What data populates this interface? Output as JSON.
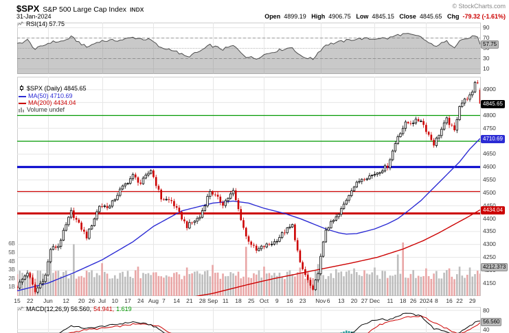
{
  "header": {
    "symbol": "$SPX",
    "name": "S&P 500 Large Cap Index",
    "exchange": "INDX",
    "date": "31-Jan-2024",
    "copyright": "© StockCharts.com",
    "quote": {
      "open_label": "Open",
      "open_value": "4899.19",
      "high_label": "High",
      "high_value": "4906.75",
      "low_label": "Low",
      "low_value": "4845.15",
      "close_label": "Close",
      "close_value": "4845.65",
      "chg_label": "Chg",
      "chg_value": "-79.32 (-1.61%)"
    }
  },
  "rsi_panel": {
    "label": "RSI(14) 57.75",
    "value_box": "57.75"
  },
  "main_panel": {
    "legend_symbol": "$SPX (Daily) 4845.65",
    "legend_ma50": "MA(50) 4710.69",
    "legend_ma200": "MA(200) 4434.04",
    "legend_volume": "Volume undef",
    "price_box": "4845.65",
    "ma50_box": "4710.69",
    "ma200_box": "4434.04",
    "gray_box": "4212.373"
  },
  "macd_panel": {
    "label_macd": "MACD(12,26,9) 56.560,",
    "label_signal": "54.941,",
    "label_hist": "1.619",
    "value_box": "56.560"
  },
  "colors": {
    "up": "#000000",
    "down": "#cc0000",
    "ma50": "#2b2bd4",
    "ma200": "#cc0000",
    "grid": "#e6e6e6",
    "panel_border": "#cccccc",
    "vol_up": "#bdbdbd",
    "vol_down": "#e9a6a6",
    "hist": "#2e9e9e",
    "rsi_line": "#4d4d4d",
    "rsi_fill": "rgba(136,136,136,0.45)"
  },
  "xaxis": {
    "labels": [
      [
        "15",
        0
      ],
      [
        "22",
        5
      ],
      [
        "Jun",
        12
      ],
      [
        "12",
        19
      ],
      [
        "20",
        25
      ],
      [
        "26",
        29
      ],
      [
        "Jul",
        33
      ],
      [
        "10",
        38
      ],
      [
        "17",
        43
      ],
      [
        "24",
        48
      ],
      [
        "Aug",
        53
      ],
      [
        "7",
        57
      ],
      [
        "14",
        62
      ],
      [
        "21",
        67
      ],
      [
        "28",
        72
      ],
      [
        "Sep",
        76
      ],
      [
        "11",
        81
      ],
      [
        "18",
        86
      ],
      [
        "25",
        91
      ],
      [
        "Oct",
        96
      ],
      [
        "9",
        101
      ],
      [
        "16",
        106
      ],
      [
        "23",
        111
      ],
      [
        "Nov",
        118
      ],
      [
        "6",
        121
      ],
      [
        "13",
        126
      ],
      [
        "20",
        131
      ],
      [
        "27",
        135
      ],
      [
        "Dec",
        139
      ],
      [
        "11",
        145
      ],
      [
        "18",
        150
      ],
      [
        "26",
        154
      ],
      [
        "2024",
        159
      ],
      [
        "8",
        163
      ],
      [
        "16",
        168
      ],
      [
        "22",
        172
      ],
      [
        "29",
        177
      ]
    ],
    "month_grid_days": [
      12,
      33,
      53,
      76,
      96,
      118,
      139,
      159
    ]
  },
  "chart_data": [
    {
      "type": "line",
      "name": "RSI(14)",
      "ylim": [
        0,
        100
      ],
      "yticks": [
        90,
        70,
        50,
        30,
        10
      ],
      "overbought": 70,
      "midline": 50,
      "oversold": 30,
      "current": 57.75,
      "anchors": [
        [
          0,
          58
        ],
        [
          4,
          66
        ],
        [
          7,
          48
        ],
        [
          13,
          62
        ],
        [
          18,
          64
        ],
        [
          21,
          72
        ],
        [
          27,
          52
        ],
        [
          32,
          64
        ],
        [
          40,
          66
        ],
        [
          45,
          71
        ],
        [
          52,
          66
        ],
        [
          56,
          50
        ],
        [
          60,
          48
        ],
        [
          66,
          33
        ],
        [
          71,
          44
        ],
        [
          75,
          56
        ],
        [
          80,
          48
        ],
        [
          84,
          55
        ],
        [
          89,
          34
        ],
        [
          93,
          30
        ],
        [
          95,
          36
        ],
        [
          100,
          44
        ],
        [
          104,
          49
        ],
        [
          107,
          52
        ],
        [
          110,
          35
        ],
        [
          115,
          29
        ],
        [
          117,
          42
        ],
        [
          120,
          57
        ],
        [
          125,
          62
        ],
        [
          130,
          67
        ],
        [
          134,
          69
        ],
        [
          138,
          68
        ],
        [
          141,
          70
        ],
        [
          144,
          69
        ],
        [
          148,
          76
        ],
        [
          151,
          78
        ],
        [
          157,
          72
        ],
        [
          159,
          64
        ],
        [
          162,
          54
        ],
        [
          167,
          63
        ],
        [
          170,
          53
        ],
        [
          172,
          66
        ],
        [
          175,
          69
        ],
        [
          178,
          74
        ],
        [
          179,
          72
        ],
        [
          180,
          57.75
        ]
      ]
    },
    {
      "type": "candlestick",
      "name": "$SPX (Daily)",
      "ylim": [
        4100,
        4950
      ],
      "yticks": [
        4900,
        4800,
        4750,
        4700,
        4650,
        4600,
        4550,
        4500,
        4450,
        4400,
        4350,
        4300,
        4250,
        4200,
        4150
      ],
      "grid_step": 50,
      "days": 181,
      "close_anchors": [
        [
          0,
          4136
        ],
        [
          4,
          4192
        ],
        [
          7,
          4115
        ],
        [
          11,
          4180
        ],
        [
          13,
          4282
        ],
        [
          16,
          4294
        ],
        [
          21,
          4426
        ],
        [
          22,
          4410
        ],
        [
          27,
          4329
        ],
        [
          32,
          4450
        ],
        [
          36,
          4446
        ],
        [
          40,
          4510
        ],
        [
          45,
          4566
        ],
        [
          48,
          4536
        ],
        [
          52,
          4589
        ],
        [
          56,
          4478
        ],
        [
          60,
          4468
        ],
        [
          66,
          4370
        ],
        [
          71,
          4406
        ],
        [
          75,
          4508
        ],
        [
          80,
          4457
        ],
        [
          84,
          4505
        ],
        [
          89,
          4330
        ],
        [
          93,
          4274
        ],
        [
          95,
          4288
        ],
        [
          100,
          4309
        ],
        [
          104,
          4350
        ],
        [
          107,
          4373
        ],
        [
          110,
          4224
        ],
        [
          115,
          4117
        ],
        [
          117,
          4194
        ],
        [
          120,
          4358
        ],
        [
          125,
          4415
        ],
        [
          130,
          4514
        ],
        [
          134,
          4556
        ],
        [
          138,
          4568
        ],
        [
          141,
          4585
        ],
        [
          144,
          4604
        ],
        [
          148,
          4720
        ],
        [
          151,
          4768
        ],
        [
          157,
          4783
        ],
        [
          159,
          4743
        ],
        [
          162,
          4689
        ],
        [
          167,
          4784
        ],
        [
          170,
          4739
        ],
        [
          172,
          4840
        ],
        [
          175,
          4869
        ],
        [
          177,
          4891
        ],
        [
          178,
          4928
        ],
        [
          179,
          4925
        ],
        [
          180,
          4845.65
        ]
      ],
      "last_ohlc": {
        "open": 4899.19,
        "high": 4906.75,
        "low": 4845.15,
        "close": 4845.65
      },
      "ma50": [
        [
          0,
          4120
        ],
        [
          12,
          4150
        ],
        [
          22,
          4190
        ],
        [
          33,
          4240
        ],
        [
          45,
          4310
        ],
        [
          53,
          4370
        ],
        [
          64,
          4430
        ],
        [
          76,
          4460
        ],
        [
          84,
          4468
        ],
        [
          90,
          4460
        ],
        [
          96,
          4440
        ],
        [
          104,
          4420
        ],
        [
          110,
          4400
        ],
        [
          115,
          4380
        ],
        [
          120,
          4360
        ],
        [
          125,
          4345
        ],
        [
          128,
          4340
        ],
        [
          132,
          4342
        ],
        [
          136,
          4352
        ],
        [
          139,
          4360
        ],
        [
          144,
          4380
        ],
        [
          148,
          4400
        ],
        [
          152,
          4430
        ],
        [
          157,
          4470
        ],
        [
          160,
          4500
        ],
        [
          164,
          4540
        ],
        [
          168,
          4580
        ],
        [
          172,
          4620
        ],
        [
          176,
          4670
        ],
        [
          180,
          4710.69
        ]
      ],
      "ma200": [
        [
          0,
          3990
        ],
        [
          25,
          4025
        ],
        [
          50,
          4065
        ],
        [
          76,
          4110
        ],
        [
          90,
          4145
        ],
        [
          100,
          4168
        ],
        [
          110,
          4188
        ],
        [
          120,
          4208
        ],
        [
          130,
          4228
        ],
        [
          140,
          4250
        ],
        [
          150,
          4282
        ],
        [
          158,
          4315
        ],
        [
          164,
          4345
        ],
        [
          170,
          4378
        ],
        [
          175,
          4405
        ],
        [
          180,
          4434.04
        ]
      ],
      "hlines": [
        {
          "value": 4800,
          "color": "#009900",
          "width": 1.2
        },
        {
          "value": 4700,
          "color": "#009900",
          "width": 1.2
        },
        {
          "value": 4600,
          "color": "#0000cc",
          "width": 3
        },
        {
          "value": 4505,
          "color": "#cc0000",
          "width": 1.2
        },
        {
          "value": 4420,
          "color": "#cc0000",
          "width": 3
        }
      ],
      "marker_values": {
        "close": 4845.65,
        "ma50": 4710.69,
        "ma200": 4434.04,
        "gray": 4212.37
      },
      "volume": {
        "unit": "B",
        "yticks": [
          "6B",
          "5B",
          "4B",
          "3B",
          "2B",
          "1B"
        ],
        "base": 1.9,
        "noise": 1.1,
        "spikes": [
          [
            13,
            4.4,
            null
          ],
          [
            22,
            6.0,
            "u"
          ],
          [
            33,
            3.8,
            null
          ],
          [
            47,
            3.4,
            null
          ],
          [
            66,
            3.3,
            "d"
          ],
          [
            76,
            3.6,
            null
          ],
          [
            89,
            5.7,
            "d"
          ],
          [
            96,
            3.4,
            null
          ],
          [
            110,
            3.3,
            "d"
          ],
          [
            117,
            3.7,
            null
          ],
          [
            124,
            3.1,
            null
          ],
          [
            131,
            3.2,
            null
          ],
          [
            139,
            3.3,
            null
          ],
          [
            148,
            4.8,
            "u"
          ],
          [
            150,
            6.2,
            "d"
          ],
          [
            154,
            3.0,
            null
          ],
          [
            159,
            3.2,
            null
          ],
          [
            163,
            2.9,
            null
          ],
          [
            168,
            3.2,
            null
          ],
          [
            172,
            3.4,
            null
          ],
          [
            176,
            3.3,
            null
          ]
        ]
      }
    },
    {
      "type": "line",
      "name": "MACD(12,26,9)",
      "yticks": [
        80,
        40
      ],
      "current": {
        "macd": 56.56,
        "signal": 54.941,
        "hist": 1.619
      },
      "macd_anchors": [
        [
          0,
          12
        ],
        [
          7,
          8
        ],
        [
          13,
          22
        ],
        [
          21,
          48
        ],
        [
          27,
          42
        ],
        [
          32,
          46
        ],
        [
          40,
          52
        ],
        [
          45,
          56
        ],
        [
          52,
          50
        ],
        [
          56,
          38
        ],
        [
          60,
          20
        ],
        [
          66,
          -12
        ],
        [
          71,
          -18
        ],
        [
          75,
          -5
        ],
        [
          80,
          -8
        ],
        [
          84,
          2
        ],
        [
          89,
          -22
        ],
        [
          93,
          -42
        ],
        [
          95,
          -40
        ],
        [
          100,
          -32
        ],
        [
          104,
          -22
        ],
        [
          107,
          -15
        ],
        [
          110,
          -35
        ],
        [
          115,
          -62
        ],
        [
          117,
          -52
        ],
        [
          120,
          -30
        ],
        [
          125,
          2
        ],
        [
          128,
          20
        ],
        [
          130,
          32
        ],
        [
          134,
          50
        ],
        [
          138,
          58
        ],
        [
          141,
          62
        ],
        [
          144,
          60
        ],
        [
          148,
          68
        ],
        [
          151,
          75
        ],
        [
          157,
          68
        ],
        [
          159,
          58
        ],
        [
          162,
          42
        ],
        [
          167,
          36
        ],
        [
          170,
          28
        ],
        [
          172,
          34
        ],
        [
          175,
          44
        ],
        [
          178,
          55
        ],
        [
          179,
          57
        ],
        [
          180,
          56.56
        ]
      ],
      "signal_anchors": [
        [
          0,
          10
        ],
        [
          7,
          10
        ],
        [
          13,
          14
        ],
        [
          21,
          34
        ],
        [
          27,
          40
        ],
        [
          32,
          42
        ],
        [
          40,
          47
        ],
        [
          45,
          51
        ],
        [
          52,
          51
        ],
        [
          56,
          45
        ],
        [
          60,
          32
        ],
        [
          66,
          8
        ],
        [
          71,
          -8
        ],
        [
          75,
          -10
        ],
        [
          80,
          -8
        ],
        [
          84,
          -4
        ],
        [
          89,
          -12
        ],
        [
          93,
          -28
        ],
        [
          95,
          -34
        ],
        [
          100,
          -34
        ],
        [
          104,
          -28
        ],
        [
          107,
          -22
        ],
        [
          110,
          -26
        ],
        [
          115,
          -45
        ],
        [
          117,
          -48
        ],
        [
          120,
          -40
        ],
        [
          125,
          -30
        ],
        [
          128,
          -18
        ],
        [
          130,
          -4
        ],
        [
          134,
          22
        ],
        [
          138,
          40
        ],
        [
          141,
          50
        ],
        [
          144,
          55
        ],
        [
          148,
          60
        ],
        [
          151,
          66
        ],
        [
          157,
          68
        ],
        [
          159,
          64
        ],
        [
          162,
          54
        ],
        [
          167,
          42
        ],
        [
          170,
          34
        ],
        [
          172,
          32
        ],
        [
          175,
          38
        ],
        [
          178,
          47
        ],
        [
          179,
          51
        ],
        [
          180,
          54.94
        ]
      ]
    }
  ]
}
